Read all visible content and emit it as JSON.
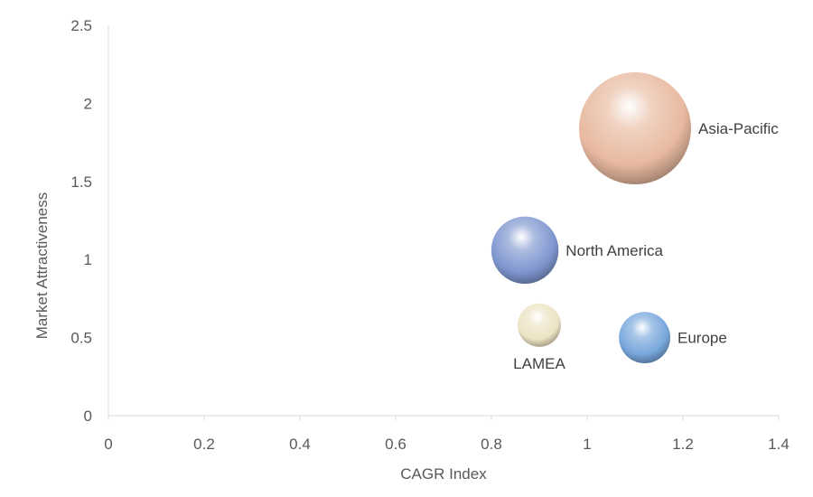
{
  "chart_data": {
    "type": "scatter",
    "subtype": "bubble",
    "title": "",
    "xlabel": "CAGR Index",
    "ylabel": "Market Attractiveness",
    "xlim": [
      0,
      1.4
    ],
    "ylim": [
      0,
      2.5
    ],
    "x_ticks": [
      "0",
      "0.2",
      "0.4",
      "0.6",
      "0.8",
      "1",
      "1.2",
      "1.4"
    ],
    "y_ticks": [
      "0",
      "0.5",
      "1",
      "1.5",
      "2",
      "2.5"
    ],
    "grid": false,
    "legend": "none",
    "points": [
      {
        "label": "Asia-Pacific",
        "x": 1.1,
        "y": 1.84,
        "size": 1.0,
        "color": "#e8b9a0",
        "label_position": "right"
      },
      {
        "label": "North America",
        "x": 0.87,
        "y": 1.06,
        "size": 0.36,
        "color": "#7f96cf",
        "label_position": "right"
      },
      {
        "label": "LAMEA",
        "x": 0.9,
        "y": 0.58,
        "size": 0.15,
        "color": "#ede3c4",
        "label_position": "below"
      },
      {
        "label": "Europe",
        "x": 1.12,
        "y": 0.5,
        "size": 0.21,
        "color": "#78a7dc",
        "label_position": "right"
      }
    ]
  }
}
